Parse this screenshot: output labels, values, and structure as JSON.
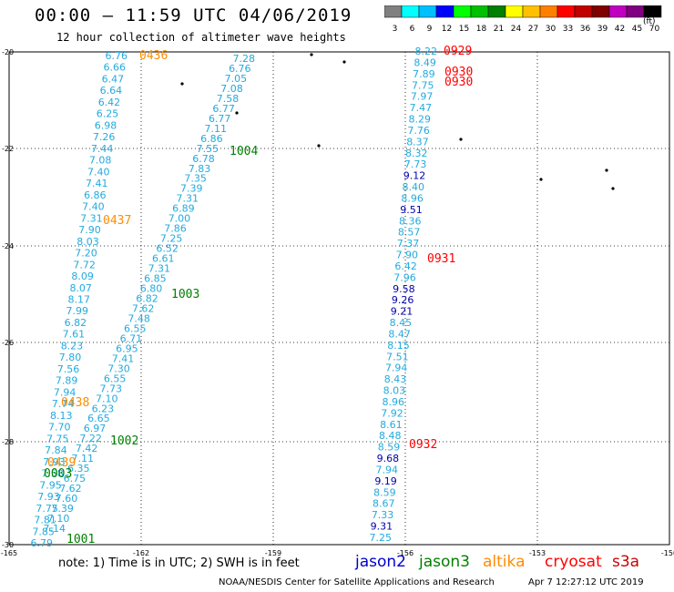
{
  "title": "00:00 – 11:59 UTC 04/06/2019",
  "subtitle": "12 hour collection of altimeter wave heights",
  "colorbar": {
    "labels": [
      "3",
      "6",
      "9",
      "12",
      "15",
      "18",
      "21",
      "24",
      "27",
      "30",
      "33",
      "36",
      "39",
      "42",
      "45",
      "70"
    ],
    "colors": [
      "#808080",
      "#00ffff",
      "#00bfff",
      "#0000ff",
      "#00ff00",
      "#00c000",
      "#008000",
      "#ffff00",
      "#ffc000",
      "#ff8000",
      "#ff0000",
      "#c00000",
      "#800000",
      "#c000c0",
      "#800080",
      "#000000"
    ],
    "unit": "(ft)"
  },
  "axes": {
    "lat_labels": [
      "-20",
      "-22",
      "-24",
      "-26",
      "-28",
      "-30"
    ],
    "lon_labels": [
      "-165",
      "-162",
      "-159",
      "-156",
      "-153",
      "-150"
    ]
  },
  "tracks": [
    {
      "name": "altika",
      "color": "#22aadd",
      "values": [
        "6.76",
        "6.66",
        "6.47",
        "6.64",
        "6.42",
        "6.25",
        "6.98",
        "7.26",
        "7.44",
        "7.08",
        "7.40",
        "7.41",
        "6.86",
        "7.40",
        "7.31",
        "7.90",
        "8.03",
        "7.20",
        "7.72",
        "8.09",
        "8.07",
        "8.17",
        "7.99",
        "6.82",
        "7.61",
        "8.23",
        "7.80",
        "7.56",
        "7.89",
        "7.94",
        "7.74",
        "8.13",
        "7.70",
        "7.75",
        "7.84",
        "7.93",
        "7.58",
        "7.95",
        "7.93",
        "7.75",
        "7.81",
        "7.85",
        "6.79"
      ]
    },
    {
      "name": "jason3",
      "color": "#22aadd",
      "values": [
        "7.28",
        "6.76",
        "7.05",
        "7.08",
        "7.58",
        "6.77",
        "6.77",
        "7.11",
        "6.86",
        "7.55",
        "6.78",
        "7.83",
        "7.35",
        "7.39",
        "7.31",
        "6.89",
        "7.00",
        "7.86",
        "7.25",
        "6.52",
        "6.61",
        "7.31",
        "6.85",
        "6.80",
        "6.82",
        "7.62",
        "7.48",
        "6.55",
        "6.71",
        "6.95",
        "7.41",
        "7.30",
        "6.55",
        "7.73",
        "7.10",
        "6.23",
        "6.65",
        "6.97",
        "7.22",
        "7.42",
        "7.11",
        "6.35",
        "6.75",
        "7.62",
        "7.60",
        "7.39",
        "7.10",
        "7.14"
      ]
    },
    {
      "name": "cryosat",
      "color": "#22aadd",
      "values": [
        "8.22",
        "8.49",
        "7.89",
        "7.75",
        "7.97",
        "7.47",
        "8.29",
        "7.76",
        "8.37",
        "8.32",
        "7.73",
        "9.12",
        "8.40",
        "8.96",
        "9.51",
        "8.36",
        "8.57",
        "7.37",
        "7.90",
        "6.42",
        "7.96",
        "9.58",
        "9.26",
        "9.21",
        "8.45",
        "8.47",
        "8.15",
        "7.51",
        "7.94",
        "8.43",
        "8.03",
        "8.96",
        "7.92",
        "8.61",
        "8.48",
        "8.59",
        "9.68",
        "7.94",
        "9.19",
        "8.59",
        "8.67",
        "7.33",
        "9.31",
        "7.25"
      ]
    }
  ],
  "time_labels": [
    {
      "text": "0436",
      "sat": "altika"
    },
    {
      "text": "0437",
      "sat": "altika"
    },
    {
      "text": "0438",
      "sat": "altika"
    },
    {
      "text": "0439",
      "sat": "altika"
    },
    {
      "text": "1004",
      "sat": "jason3"
    },
    {
      "text": "1003",
      "sat": "jason3"
    },
    {
      "text": "1002",
      "sat": "jason3"
    },
    {
      "text": "1001",
      "sat": "jason3"
    },
    {
      "text": "0003",
      "sat": "jason3"
    },
    {
      "text": "0929",
      "sat": "cryosat"
    },
    {
      "text": "0930",
      "sat": "cryosat"
    },
    {
      "text": "0930",
      "sat": "cryosat"
    },
    {
      "text": "0931",
      "sat": "cryosat"
    },
    {
      "text": "0932",
      "sat": "cryosat"
    }
  ],
  "sat_colors": {
    "altika": "#ff8c00",
    "jason3": "#008000",
    "cryosat": "#ff0000",
    "jason2": "#0000cc",
    "s3a": "#cc0000"
  },
  "footer": {
    "note": "note: 1) Time is in UTC; 2) SWH is in feet",
    "legend": [
      {
        "label": "jason2",
        "color": "#0000cc"
      },
      {
        "label": "jason3",
        "color": "#008000"
      },
      {
        "label": "altika",
        "color": "#ff8c00"
      },
      {
        "label": "cryosat",
        "color": "#ff0000"
      },
      {
        "label": "s3a",
        "color": "#cc0000"
      }
    ],
    "credit": "NOAA/NESDIS Center for Satellite Applications and Research",
    "stamp": "Apr  7 12:27:12 UTC 2019"
  }
}
